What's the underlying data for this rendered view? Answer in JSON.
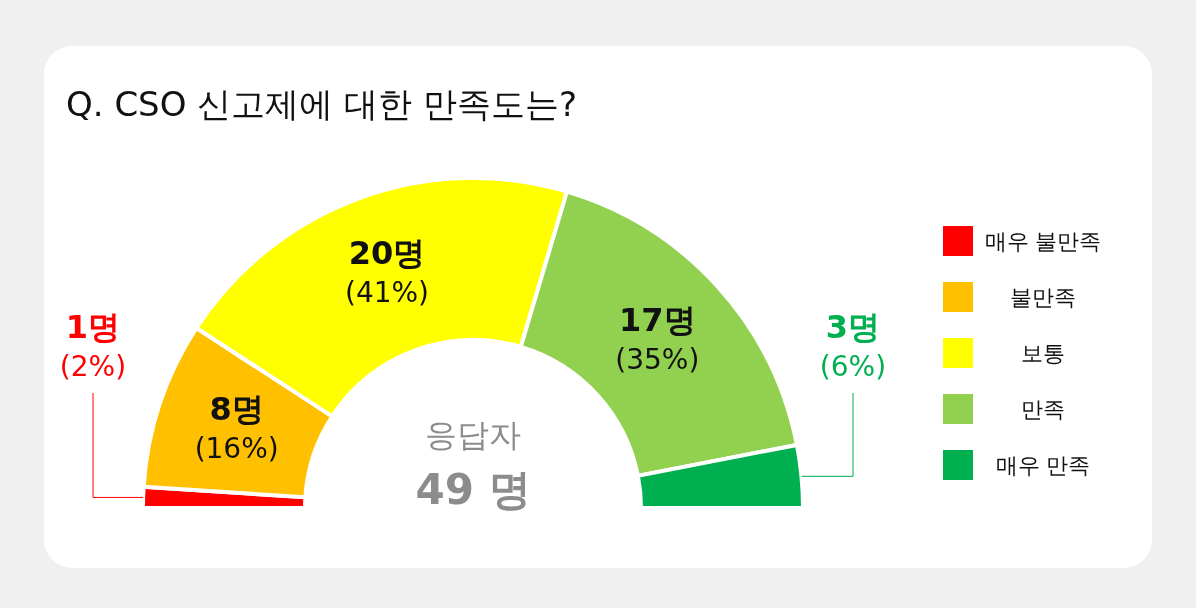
{
  "chart_data": {
    "type": "donut",
    "title": "Q. CSO 신고제에 대한 만족도는?",
    "categories": [
      "매우 불만족",
      "불만족",
      "보통",
      "만족",
      "매우 만족"
    ],
    "values": [
      1,
      8,
      20,
      17,
      3
    ],
    "colors": [
      "#ff0000",
      "#ffc000",
      "#ffff00",
      "#92d050",
      "#00b050"
    ],
    "value_labels": [
      "1명\n(2%)",
      "8명\n(16%)",
      "20명\n(41%)",
      "17명\n(35%)",
      "3명\n(6%)"
    ],
    "annotations": [
      "응답자",
      "49 명"
    ],
    "legend": "right"
  }
}
